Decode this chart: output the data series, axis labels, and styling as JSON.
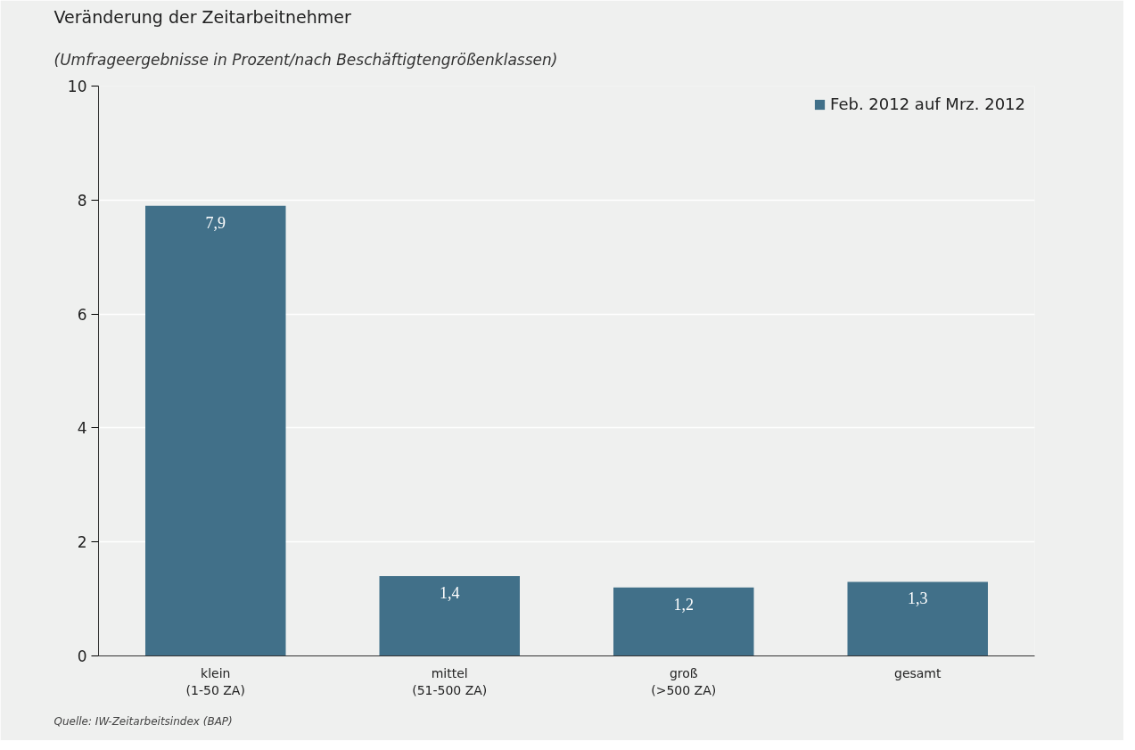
{
  "chart_data": {
    "type": "bar",
    "title": "Veränderung der Zeitarbeitnehmer",
    "subtitle": "(Umfrageergebnisse in Prozent/nach Beschäftigtengrößenklassen)",
    "categories": [
      "klein\n(1-50 ZA)",
      "mittel\n(51-500 ZA)",
      "groß\n(>500 ZA)",
      "gesamt"
    ],
    "series": [
      {
        "name": "Feb. 2012 auf Mrz. 2012",
        "color": "#417089",
        "values": [
          7.9,
          1.4,
          1.2,
          1.3
        ],
        "value_labels": [
          "7,9",
          "1,4",
          "1,2",
          "1,3"
        ]
      }
    ],
    "ylim": [
      0,
      10
    ],
    "yticks": [
      0,
      2,
      4,
      6,
      8,
      10
    ],
    "grid": "y",
    "legend": "top right",
    "annotations": [
      "Quelle: IW-Zeitarbeitsindex (BAP)"
    ]
  }
}
